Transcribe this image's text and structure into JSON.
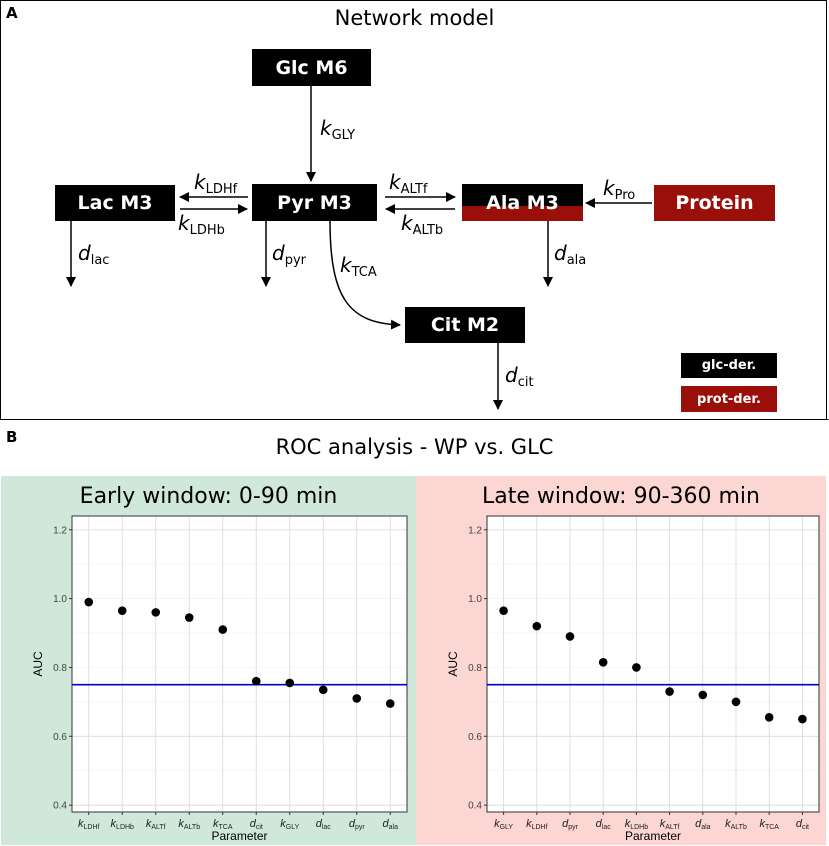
{
  "panel_a": {
    "letter": "A",
    "title": "Network model",
    "nodes": {
      "glc": "Glc M6",
      "lac": "Lac M3",
      "pyr": "Pyr M3",
      "ala": "Ala M3",
      "protein": "Protein",
      "cit": "Cit M2"
    },
    "rates": {
      "k_gly": {
        "sym": "k",
        "sub": "GLY"
      },
      "k_ldhf": {
        "sym": "k",
        "sub": "LDHf"
      },
      "k_ldhb": {
        "sym": "k",
        "sub": "LDHb"
      },
      "k_altf": {
        "sym": "k",
        "sub": "ALTf"
      },
      "k_altb": {
        "sym": "k",
        "sub": "ALTb"
      },
      "k_pro": {
        "sym": "k",
        "sub": "Pro"
      },
      "k_tca": {
        "sym": "k",
        "sub": "TCA"
      },
      "d_lac": {
        "sym": "d",
        "sub": "lac"
      },
      "d_pyr": {
        "sym": "d",
        "sub": "pyr"
      },
      "d_ala": {
        "sym": "d",
        "sub": "ala"
      },
      "d_cit": {
        "sym": "d",
        "sub": "cit"
      }
    },
    "legend": [
      {
        "label": "glc-der.",
        "color": "#000000"
      },
      {
        "label": "prot-der.",
        "color": "#9b0f0a"
      }
    ]
  },
  "panel_b": {
    "letter": "B",
    "title": "ROC analysis - WP vs. GLC",
    "colors": {
      "early_bg": "#cfe8da",
      "late_bg": "#fbd6d2",
      "threshold": "#0000cc",
      "points": "#000000"
    }
  },
  "chart_data": [
    {
      "type": "scatter",
      "title": "Early window: 0-90 min",
      "xlabel": "Parameter",
      "ylabel": "AUC",
      "ylim": [
        0.38,
        1.24
      ],
      "yticks": [
        "0.4",
        "0.6",
        "0.8",
        "1.0",
        "1.2"
      ],
      "threshold": 0.75,
      "categories": [
        {
          "sym": "k",
          "sub": "LDHf"
        },
        {
          "sym": "k",
          "sub": "LDHb"
        },
        {
          "sym": "k",
          "sub": "ALTf"
        },
        {
          "sym": "k",
          "sub": "ALTb"
        },
        {
          "sym": "k",
          "sub": "TCA"
        },
        {
          "sym": "d",
          "sub": "cit"
        },
        {
          "sym": "k",
          "sub": "GLY"
        },
        {
          "sym": "d",
          "sub": "lac"
        },
        {
          "sym": "d",
          "sub": "pyr"
        },
        {
          "sym": "d",
          "sub": "ala"
        }
      ],
      "values": [
        0.99,
        0.965,
        0.96,
        0.945,
        0.91,
        0.76,
        0.755,
        0.735,
        0.71,
        0.695
      ],
      "grid": true
    },
    {
      "type": "scatter",
      "title": "Late window: 90-360 min",
      "xlabel": "Parameter",
      "ylabel": "AUC",
      "ylim": [
        0.38,
        1.24
      ],
      "yticks": [
        "0.4",
        "0.6",
        "0.8",
        "1.0",
        "1.2"
      ],
      "threshold": 0.75,
      "categories": [
        {
          "sym": "k",
          "sub": "GLY"
        },
        {
          "sym": "k",
          "sub": "LDHf"
        },
        {
          "sym": "d",
          "sub": "pyr"
        },
        {
          "sym": "d",
          "sub": "lac"
        },
        {
          "sym": "k",
          "sub": "LDHb"
        },
        {
          "sym": "k",
          "sub": "ALTf"
        },
        {
          "sym": "d",
          "sub": "ala"
        },
        {
          "sym": "k",
          "sub": "ALTb"
        },
        {
          "sym": "k",
          "sub": "TCA"
        },
        {
          "sym": "d",
          "sub": "cit"
        }
      ],
      "values": [
        0.965,
        0.92,
        0.89,
        0.815,
        0.8,
        0.73,
        0.72,
        0.7,
        0.655,
        0.65
      ],
      "grid": true
    }
  ]
}
